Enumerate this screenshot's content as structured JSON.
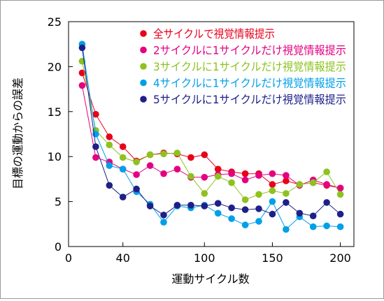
{
  "chart_data": {
    "type": "line",
    "xlabel": "運動サイクル数",
    "ylabel": "目標の運動からの誤差",
    "xlim": [
      0,
      210
    ],
    "ylim": [
      0,
      25
    ],
    "xticks": [
      0,
      40,
      100,
      150,
      200
    ],
    "yticks": [
      0,
      5,
      10,
      15,
      20,
      25
    ],
    "grid": false,
    "legend_position": "top-right",
    "series": [
      {
        "name": "全サイクルで視覚情報提示",
        "color": "#e8001c",
        "x": [
          10,
          20,
          30,
          40,
          50,
          60,
          70,
          80,
          90,
          100,
          110,
          120,
          130,
          140,
          150,
          160,
          170,
          180,
          190,
          200
        ],
        "y": [
          19.3,
          14.7,
          12.2,
          11.1,
          9.5,
          10.2,
          10.4,
          10.3,
          9.9,
          10.2,
          8.6,
          8.3,
          8.1,
          8.1,
          6.9,
          7.3,
          6.9,
          7.1,
          6.8,
          6.5
        ]
      },
      {
        "name": "2サイクルに1サイクルだけ視覚情報提示",
        "color": "#e4007f",
        "x": [
          10,
          20,
          30,
          40,
          50,
          60,
          70,
          80,
          90,
          100,
          110,
          120,
          130,
          140,
          150,
          160,
          170,
          180,
          190,
          200
        ],
        "y": [
          17.9,
          9.9,
          9.4,
          8.6,
          8.0,
          9.0,
          8.1,
          8.6,
          7.7,
          7.7,
          8.0,
          8.1,
          7.4,
          7.9,
          8.1,
          7.9,
          6.8,
          7.4,
          6.9,
          6.5
        ]
      },
      {
        "name": "3サイクルに1サイクルだけ視覚情報提示",
        "color": "#8dc21f",
        "x": [
          10,
          20,
          30,
          40,
          50,
          60,
          70,
          80,
          90,
          100,
          110,
          120,
          130,
          140,
          150,
          160,
          170,
          180,
          190,
          200
        ],
        "y": [
          20.6,
          12.9,
          11.3,
          9.9,
          9.4,
          10.2,
          10.3,
          10.4,
          7.8,
          5.9,
          7.8,
          7.1,
          5.2,
          5.8,
          6.2,
          5.9,
          6.9,
          7.1,
          8.3,
          5.8
        ]
      },
      {
        "name": "4サイクルに1サイクルだけ視覚情報提示",
        "color": "#00a0e9",
        "x": [
          10,
          20,
          30,
          40,
          50,
          60,
          70,
          80,
          90,
          100,
          110,
          120,
          130,
          140,
          150,
          160,
          170,
          180,
          190,
          200
        ],
        "y": [
          22.5,
          12.5,
          9.0,
          8.6,
          6.1,
          4.7,
          2.7,
          4.5,
          4.3,
          4.6,
          3.7,
          3.1,
          2.4,
          2.8,
          5.0,
          1.9,
          3.3,
          2.2,
          2.3,
          2.2
        ]
      },
      {
        "name": "5サイクルに1サイクルだけ視覚情報提示",
        "color": "#1d2088",
        "x": [
          10,
          20,
          30,
          40,
          50,
          60,
          70,
          80,
          90,
          100,
          110,
          120,
          130,
          140,
          150,
          160,
          170,
          180,
          190,
          200
        ],
        "y": [
          22.1,
          11.1,
          6.8,
          5.5,
          6.4,
          4.5,
          3.5,
          4.6,
          4.6,
          4.5,
          4.8,
          4.3,
          4.1,
          4.2,
          3.6,
          4.9,
          3.7,
          3.4,
          4.9,
          3.6
        ]
      }
    ]
  }
}
